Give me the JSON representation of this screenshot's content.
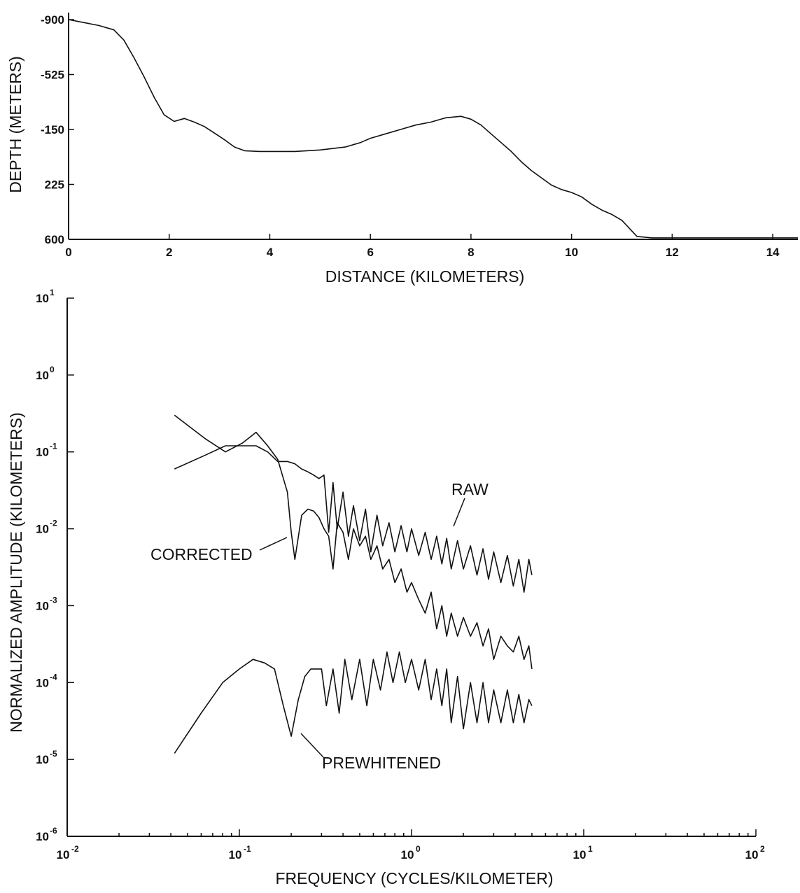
{
  "chart_data": [
    {
      "type": "line",
      "title": "",
      "xlabel": "DISTANCE (KILOMETERS)",
      "ylabel": "DEPTH (METERS)",
      "xlim": [
        0,
        14.5
      ],
      "ylim": [
        -900,
        600
      ],
      "x_ticks": [
        "0",
        "2",
        "4",
        "6",
        "8",
        "10",
        "12",
        "14"
      ],
      "y_ticks": [
        "-900",
        "-525",
        "-150",
        "225",
        "600"
      ],
      "grid": false,
      "series": [
        {
          "x": [
            0,
            0.3,
            0.6,
            0.9,
            1.1,
            1.3,
            1.5,
            1.7,
            1.9,
            2.1,
            2.3,
            2.5,
            2.7,
            2.9,
            3.1,
            3.3,
            3.5,
            3.8,
            4.0,
            4.5,
            5.0,
            5.5,
            5.8,
            6.0,
            6.3,
            6.6,
            6.9,
            7.2,
            7.5,
            7.8,
            8.0,
            8.2,
            8.4,
            8.6,
            8.8,
            9.0,
            9.2,
            9.4,
            9.6,
            9.8,
            10.0,
            10.2,
            10.4,
            10.6,
            10.8,
            11.0,
            11.3,
            11.6,
            12.0,
            13.0,
            14.0,
            14.5
          ],
          "y": [
            -900,
            -880,
            -860,
            -830,
            -760,
            -640,
            -510,
            -370,
            -250,
            -205,
            -225,
            -200,
            -170,
            -125,
            -80,
            -30,
            -5,
            0,
            0,
            0,
            -10,
            -30,
            -60,
            -90,
            -120,
            -150,
            -180,
            -200,
            -230,
            -240,
            -220,
            -180,
            -120,
            -60,
            0,
            70,
            130,
            180,
            230,
            260,
            280,
            310,
            360,
            400,
            430,
            470,
            580,
            590,
            590,
            590,
            590,
            590
          ]
        }
      ]
    },
    {
      "type": "line",
      "title": "",
      "xlabel": "FREQUENCY (CYCLES/KILOMETER)",
      "ylabel": "NORMALIZED AMPLITUDE (KILOMETERS)",
      "xscale": "log",
      "yscale": "log",
      "xlim": [
        0.01,
        100
      ],
      "ylim": [
        1e-06,
        10
      ],
      "x_ticks": [
        {
          "base": "10",
          "exp": "-2"
        },
        {
          "base": "10",
          "exp": "-1"
        },
        {
          "base": "10",
          "exp": "0"
        },
        {
          "base": "10",
          "exp": "1"
        },
        {
          "base": "10",
          "exp": "2"
        }
      ],
      "y_ticks": [
        {
          "base": "10",
          "exp": "1"
        },
        {
          "base": "10",
          "exp": "0"
        },
        {
          "base": "10",
          "exp": "-1"
        },
        {
          "base": "10",
          "exp": "-2"
        },
        {
          "base": "10",
          "exp": "-3"
        },
        {
          "base": "10",
          "exp": "-4"
        },
        {
          "base": "10",
          "exp": "-5"
        },
        {
          "base": "10",
          "exp": "-6"
        }
      ],
      "grid": false,
      "annotations": [
        "RAW",
        "CORRECTED",
        "PREWHITENED"
      ],
      "series": [
        {
          "x": [
            0.042,
            0.063,
            0.083,
            0.104,
            0.125,
            0.146,
            0.167,
            0.19,
            0.21,
            0.23,
            0.25,
            0.27,
            0.29,
            0.31,
            0.33,
            0.35,
            0.37,
            0.4,
            0.43,
            0.46,
            0.5,
            0.54,
            0.58,
            0.63,
            0.68,
            0.74,
            0.8,
            0.87,
            0.94,
            1.0,
            1.1,
            1.2,
            1.3,
            1.4,
            1.5,
            1.6,
            1.7,
            1.85,
            2.0,
            2.2,
            2.4,
            2.6,
            2.8,
            3.0,
            3.3,
            3.6,
            3.9,
            4.2,
            4.5,
            4.8,
            5.0
          ],
          "y": [
            0.06,
            0.09,
            0.12,
            0.12,
            0.12,
            0.1,
            0.075,
            0.075,
            0.07,
            0.06,
            0.055,
            0.05,
            0.045,
            0.05,
            0.009,
            0.04,
            0.01,
            0.03,
            0.008,
            0.02,
            0.007,
            0.018,
            0.005,
            0.015,
            0.006,
            0.012,
            0.005,
            0.011,
            0.005,
            0.01,
            0.0045,
            0.009,
            0.004,
            0.008,
            0.0035,
            0.0075,
            0.003,
            0.007,
            0.003,
            0.006,
            0.0025,
            0.0055,
            0.0022,
            0.005,
            0.002,
            0.0045,
            0.0018,
            0.004,
            0.0015,
            0.004,
            0.0025
          ]
        },
        {
          "x": [
            0.042,
            0.063,
            0.083,
            0.104,
            0.125,
            0.146,
            0.167,
            0.19,
            0.2,
            0.21,
            0.23,
            0.25,
            0.27,
            0.29,
            0.31,
            0.33,
            0.35,
            0.37,
            0.4,
            0.43,
            0.46,
            0.5,
            0.54,
            0.58,
            0.63,
            0.68,
            0.74,
            0.8,
            0.87,
            0.94,
            1.0,
            1.1,
            1.2,
            1.3,
            1.4,
            1.5,
            1.6,
            1.7,
            1.85,
            2.0,
            2.2,
            2.4,
            2.6,
            2.8,
            3.0,
            3.3,
            3.6,
            3.9,
            4.2,
            4.5,
            4.8,
            5.0
          ],
          "y": [
            0.3,
            0.15,
            0.1,
            0.13,
            0.18,
            0.12,
            0.08,
            0.03,
            0.009,
            0.004,
            0.015,
            0.018,
            0.017,
            0.014,
            0.01,
            0.008,
            0.003,
            0.012,
            0.009,
            0.004,
            0.01,
            0.006,
            0.008,
            0.004,
            0.006,
            0.003,
            0.004,
            0.002,
            0.003,
            0.0015,
            0.002,
            0.0012,
            0.0008,
            0.0015,
            0.0005,
            0.001,
            0.0004,
            0.0008,
            0.0004,
            0.0007,
            0.0004,
            0.0006,
            0.0003,
            0.0005,
            0.0002,
            0.0004,
            0.0003,
            0.00025,
            0.0004,
            0.0002,
            0.0003,
            0.00015
          ]
        },
        {
          "x": [
            0.042,
            0.06,
            0.08,
            0.1,
            0.12,
            0.14,
            0.16,
            0.18,
            0.2,
            0.22,
            0.24,
            0.26,
            0.28,
            0.3,
            0.32,
            0.35,
            0.38,
            0.41,
            0.45,
            0.5,
            0.55,
            0.6,
            0.66,
            0.72,
            0.78,
            0.85,
            0.92,
            1.0,
            1.1,
            1.2,
            1.3,
            1.4,
            1.5,
            1.6,
            1.7,
            1.85,
            2.0,
            2.2,
            2.4,
            2.6,
            2.8,
            3.0,
            3.3,
            3.6,
            3.9,
            4.2,
            4.5,
            4.8,
            5.0
          ],
          "y": [
            1.2e-05,
            4e-05,
            0.0001,
            0.00015,
            0.0002,
            0.00018,
            0.00015,
            5e-05,
            2e-05,
            6e-05,
            0.00012,
            0.00015,
            0.00015,
            0.00015,
            5e-05,
            0.00015,
            4e-05,
            0.0002,
            6e-05,
            0.0002,
            5e-05,
            0.0002,
            8e-05,
            0.00025,
            0.0001,
            0.00025,
            0.0001,
            0.0002,
            8e-05,
            0.0002,
            6e-05,
            0.00015,
            5e-05,
            0.00015,
            3e-05,
            0.00012,
            2.5e-05,
            0.0001,
            3e-05,
            0.0001,
            3e-05,
            8e-05,
            3e-05,
            8e-05,
            3e-05,
            7e-05,
            3e-05,
            6e-05,
            5e-05
          ]
        }
      ]
    }
  ]
}
